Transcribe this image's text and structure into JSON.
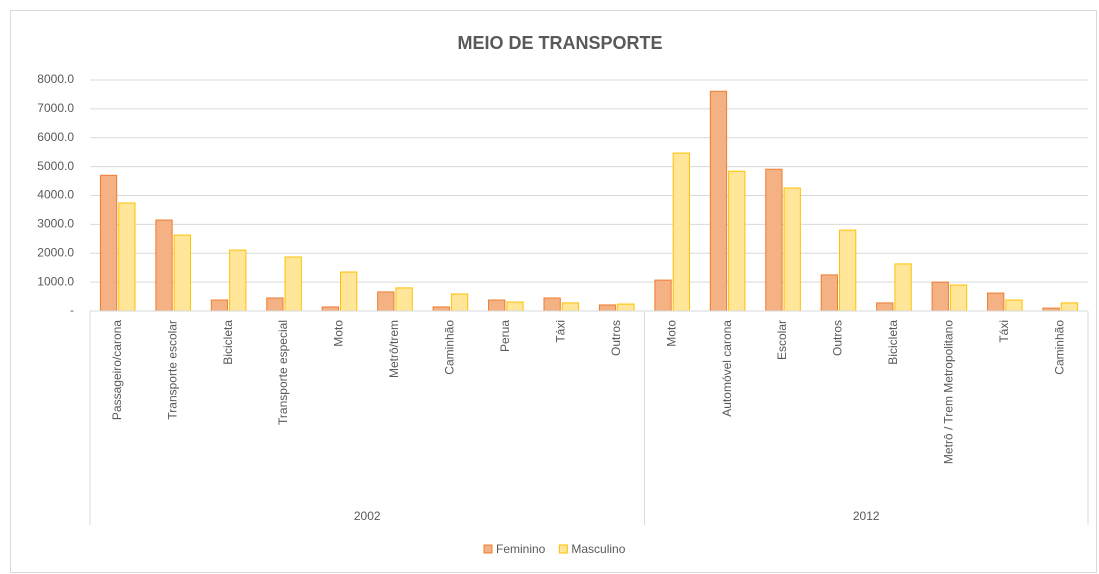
{
  "chart_data": {
    "type": "bar",
    "title": "MEIO DE TRANSPORTE",
    "groups": [
      {
        "name": "2002",
        "categories": [
          "Passageiro/carona",
          "Transporte escolar",
          "Bicicleta",
          "Transporte especial",
          "Moto",
          "Metrô/trem",
          "Caminhão",
          "Perua",
          "Táxi",
          "Outros"
        ]
      },
      {
        "name": "2012",
        "categories": [
          "Moto",
          "Automóvel carona",
          "Escolar",
          "Outros",
          "Bicicleta",
          "Metrô / Trem Metropolitano",
          "Táxi",
          "Caminhão"
        ]
      }
    ],
    "series": [
      {
        "name": "Feminino",
        "color": "#f4b183",
        "edge": "#ed7d31",
        "values": [
          4700,
          3150,
          380,
          450,
          140,
          660,
          140,
          380,
          450,
          210,
          1070,
          7610,
          4910,
          1250,
          280,
          1000,
          620,
          100
        ]
      },
      {
        "name": "Masculino",
        "color": "#ffe699",
        "edge": "#ffc000",
        "values": [
          3740,
          2630,
          2110,
          1870,
          1350,
          800,
          590,
          310,
          280,
          240,
          5470,
          4840,
          4260,
          2800,
          1630,
          900,
          380,
          280
        ]
      }
    ],
    "ylim": [
      0,
      8000
    ],
    "yticks": [
      {
        "value": 0,
        "label": "-"
      },
      {
        "value": 1000,
        "label": "1000.0"
      },
      {
        "value": 2000,
        "label": "2000.0"
      },
      {
        "value": 3000,
        "label": "3000.0"
      },
      {
        "value": 4000,
        "label": "4000.0"
      },
      {
        "value": 5000,
        "label": "5000.0"
      },
      {
        "value": 6000,
        "label": "6000.0"
      },
      {
        "value": 7000,
        "label": "7000.0"
      },
      {
        "value": 8000,
        "label": "8000.0"
      }
    ],
    "grid": true,
    "legend": "bottom"
  }
}
